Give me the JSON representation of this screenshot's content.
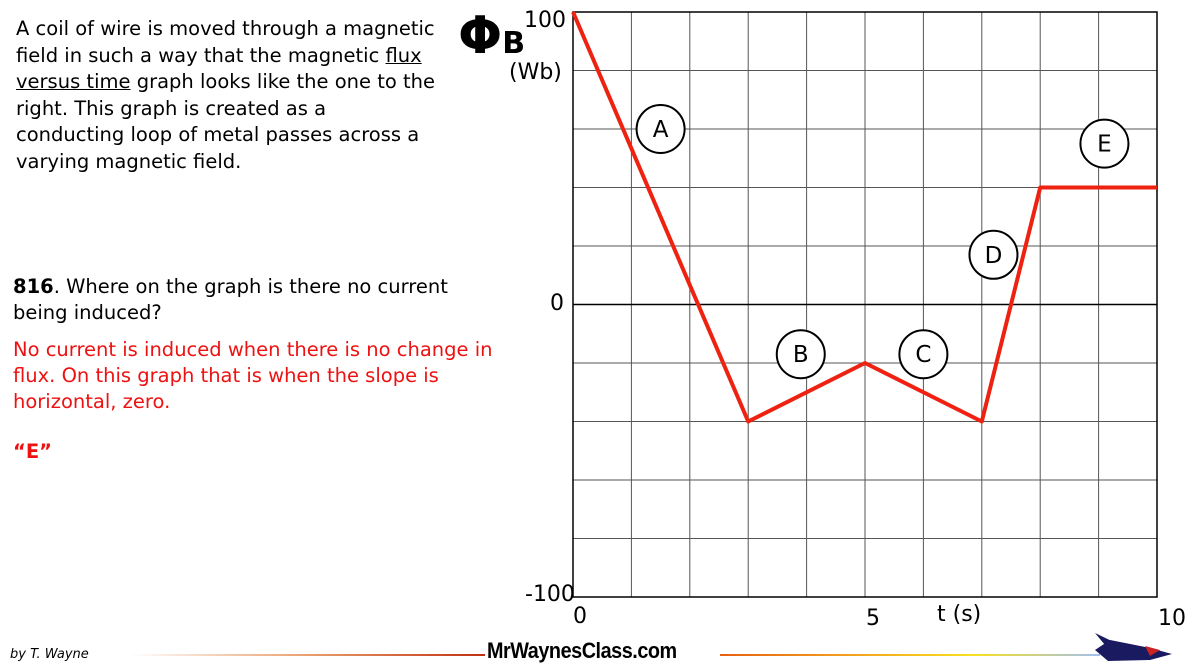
{
  "intro": {
    "before": "A  coil of wire is moved through a magnetic field in such a way that the magnetic ",
    "underlined": "flux versus time",
    "after": " graph looks like the one to the right. This graph is created as a conducting loop of metal passes across a varying magnetic field."
  },
  "question": {
    "number": "816",
    "text": ". Where on the graph is there no current being induced?"
  },
  "answer": {
    "text": "No current is induced when there is no change in flux. On this graph that is when the slope is horizontal, zero.",
    "letter": "“E”",
    "color": "#ee1111"
  },
  "chart_data": {
    "type": "line",
    "ylabel_symbol": "Φ",
    "ylabel_sub": "B",
    "ylabel_unit": "(Wb)",
    "xlabel": "t (s)",
    "xlim": [
      0,
      10
    ],
    "ylim": [
      -100,
      100
    ],
    "x_tick_labels": [
      "0",
      "5",
      "10"
    ],
    "y_tick_labels": [
      "100",
      "0",
      "-100"
    ],
    "grid": true,
    "x_grid_step": 1,
    "y_grid_step": 20,
    "series": [
      {
        "color": "#ee2211",
        "x": [
          0,
          3,
          5,
          7,
          8,
          10
        ],
        "y": [
          100,
          -40,
          -20,
          -40,
          40,
          40
        ]
      }
    ],
    "annotations": [
      {
        "label": "A",
        "x": 1.5,
        "y": 60
      },
      {
        "label": "B",
        "x": 3.9,
        "y": -17
      },
      {
        "label": "C",
        "x": 6.0,
        "y": -17
      },
      {
        "label": "D",
        "x": 7.2,
        "y": 17
      },
      {
        "label": "E",
        "x": 9.1,
        "y": 55
      }
    ]
  },
  "footer": {
    "author": "by T. Wayne",
    "brand": "MrWaynesClass.com"
  }
}
